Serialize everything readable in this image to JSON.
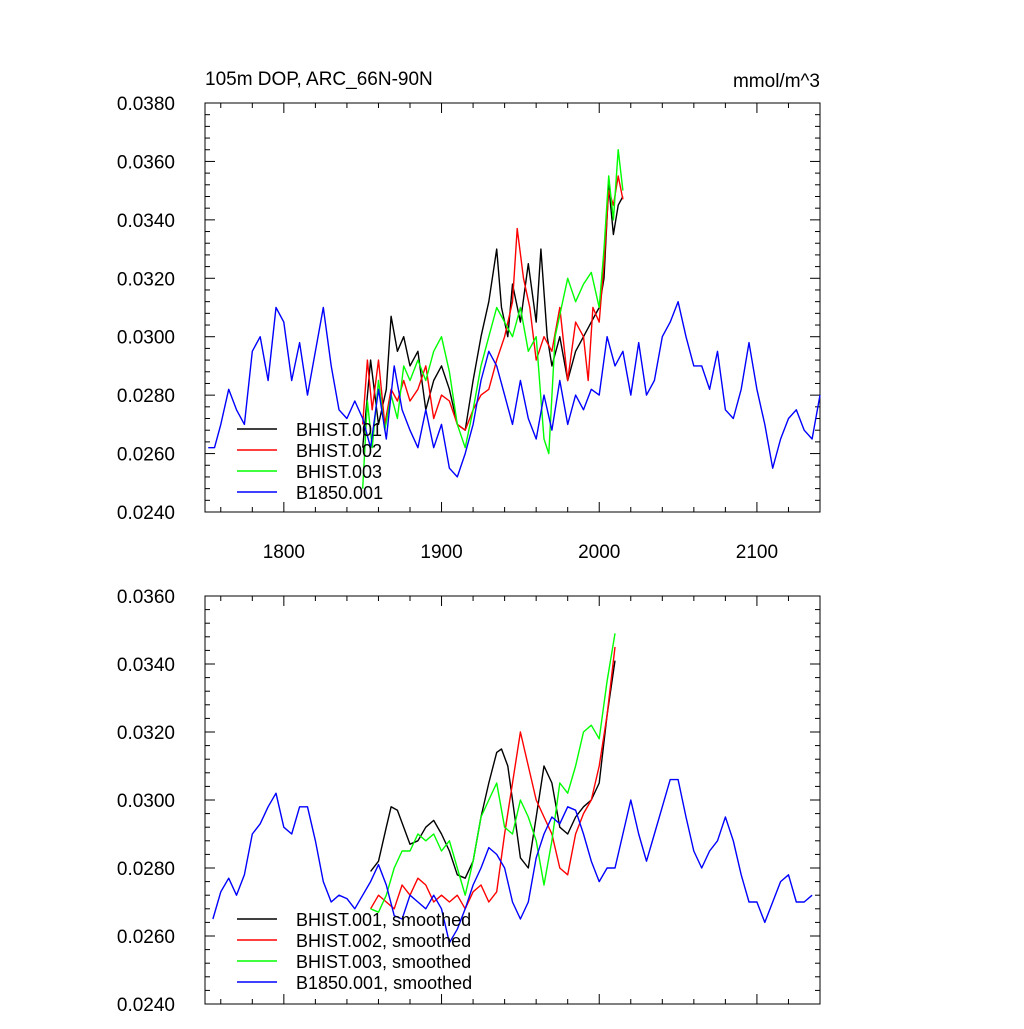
{
  "chart_data": [
    {
      "type": "line",
      "title_left": "105m DOP, ARC_66N-90N",
      "title_right": "mmol/m^3",
      "xlim": [
        1750,
        2140
      ],
      "ylim": [
        0.024,
        0.038
      ],
      "xticks": [
        1800,
        1900,
        2000,
        2100
      ],
      "yticks": [
        "0.0240",
        "0.0260",
        "0.0280",
        "0.0300",
        "0.0320",
        "0.0340",
        "0.0360",
        "0.0380"
      ],
      "legend": "bottom-left",
      "series": [
        {
          "name": "BHIST.001",
          "color": "#000000",
          "x": [
            1850,
            1855,
            1860,
            1865,
            1868,
            1872,
            1876,
            1880,
            1885,
            1890,
            1895,
            1900,
            1905,
            1910,
            1915,
            1920,
            1925,
            1930,
            1935,
            1938,
            1942,
            1945,
            1950,
            1955,
            1960,
            1963,
            1967,
            1970,
            1975,
            1980,
            1985,
            1990,
            1995,
            2000,
            2003,
            2006,
            2009,
            2012,
            2015
          ],
          "y": [
            0.0262,
            0.0292,
            0.027,
            0.0282,
            0.0307,
            0.0295,
            0.03,
            0.029,
            0.0295,
            0.0275,
            0.0285,
            0.029,
            0.0282,
            0.027,
            0.0268,
            0.0285,
            0.03,
            0.0312,
            0.033,
            0.031,
            0.03,
            0.0318,
            0.0305,
            0.0325,
            0.0305,
            0.033,
            0.03,
            0.029,
            0.03,
            0.0285,
            0.0295,
            0.03,
            0.0305,
            0.031,
            0.032,
            0.0352,
            0.0335,
            0.0345,
            0.0348
          ]
        },
        {
          "name": "BHIST.002",
          "color": "#ff0000",
          "x": [
            1850,
            1853,
            1856,
            1860,
            1864,
            1868,
            1872,
            1876,
            1880,
            1885,
            1890,
            1895,
            1900,
            1905,
            1910,
            1915,
            1920,
            1925,
            1930,
            1935,
            1940,
            1945,
            1948,
            1952,
            1956,
            1960,
            1965,
            1970,
            1975,
            1980,
            1985,
            1990,
            1993,
            1996,
            2000,
            2003,
            2006,
            2009,
            2012,
            2015
          ],
          "y": [
            0.027,
            0.0292,
            0.0275,
            0.0292,
            0.027,
            0.0282,
            0.0278,
            0.0285,
            0.0278,
            0.0282,
            0.029,
            0.0272,
            0.028,
            0.0278,
            0.027,
            0.0268,
            0.0275,
            0.028,
            0.0282,
            0.0292,
            0.03,
            0.0312,
            0.0337,
            0.032,
            0.031,
            0.0292,
            0.03,
            0.0295,
            0.031,
            0.0285,
            0.0305,
            0.03,
            0.0285,
            0.031,
            0.0305,
            0.0325,
            0.035,
            0.0345,
            0.0355,
            0.0347
          ]
        },
        {
          "name": "BHIST.003",
          "color": "#00ff00",
          "x": [
            1850,
            1853,
            1856,
            1860,
            1864,
            1868,
            1872,
            1876,
            1880,
            1885,
            1890,
            1895,
            1900,
            1905,
            1910,
            1915,
            1920,
            1925,
            1930,
            1935,
            1940,
            1945,
            1950,
            1955,
            1960,
            1965,
            1968,
            1972,
            1976,
            1980,
            1985,
            1990,
            1995,
            2000,
            2003,
            2006,
            2009,
            2012,
            2015
          ],
          "y": [
            0.0248,
            0.0278,
            0.0262,
            0.0285,
            0.0268,
            0.028,
            0.0272,
            0.029,
            0.0285,
            0.0292,
            0.0285,
            0.0295,
            0.03,
            0.0288,
            0.027,
            0.0262,
            0.0275,
            0.029,
            0.03,
            0.031,
            0.0305,
            0.03,
            0.031,
            0.0295,
            0.03,
            0.0265,
            0.026,
            0.03,
            0.031,
            0.032,
            0.0312,
            0.0318,
            0.0322,
            0.031,
            0.033,
            0.0355,
            0.034,
            0.0364,
            0.035
          ]
        },
        {
          "name": "B1850.001",
          "color": "#0000ff",
          "x": [
            1752,
            1756,
            1760,
            1765,
            1770,
            1775,
            1780,
            1785,
            1790,
            1795,
            1800,
            1805,
            1810,
            1815,
            1820,
            1825,
            1830,
            1835,
            1840,
            1845,
            1850,
            1855,
            1860,
            1865,
            1870,
            1875,
            1880,
            1885,
            1890,
            1895,
            1900,
            1905,
            1910,
            1915,
            1920,
            1925,
            1930,
            1935,
            1940,
            1945,
            1950,
            1955,
            1960,
            1965,
            1970,
            1975,
            1980,
            1985,
            1990,
            1995,
            2000,
            2005,
            2010,
            2015,
            2020,
            2025,
            2030,
            2035,
            2040,
            2045,
            2050,
            2055,
            2060,
            2065,
            2070,
            2075,
            2080,
            2085,
            2090,
            2095,
            2100,
            2105,
            2110,
            2115,
            2120,
            2125,
            2130,
            2135,
            2140
          ],
          "y": [
            0.0262,
            0.0262,
            0.027,
            0.0282,
            0.0275,
            0.027,
            0.0295,
            0.03,
            0.0285,
            0.031,
            0.0305,
            0.0285,
            0.0298,
            0.028,
            0.0295,
            0.031,
            0.029,
            0.0275,
            0.0272,
            0.0278,
            0.0272,
            0.0262,
            0.0282,
            0.0265,
            0.029,
            0.0275,
            0.0268,
            0.0262,
            0.0275,
            0.0262,
            0.027,
            0.0255,
            0.0252,
            0.026,
            0.027,
            0.0285,
            0.0295,
            0.029,
            0.028,
            0.027,
            0.0285,
            0.0272,
            0.0265,
            0.028,
            0.0268,
            0.0285,
            0.027,
            0.028,
            0.0275,
            0.0282,
            0.028,
            0.03,
            0.029,
            0.0295,
            0.028,
            0.0298,
            0.028,
            0.0285,
            0.03,
            0.0305,
            0.0312,
            0.03,
            0.029,
            0.029,
            0.0282,
            0.0295,
            0.0275,
            0.0272,
            0.0282,
            0.0298,
            0.0282,
            0.027,
            0.0255,
            0.0265,
            0.0272,
            0.0275,
            0.0268,
            0.0265,
            0.028
          ]
        }
      ]
    },
    {
      "type": "line",
      "xlim": [
        1750,
        2140
      ],
      "ylim": [
        0.024,
        0.036
      ],
      "xticks": [
        1800,
        1900,
        2000,
        2100
      ],
      "yticks": [
        "0.0240",
        "0.0260",
        "0.0280",
        "0.0300",
        "0.0320",
        "0.0340",
        "0.0360"
      ],
      "legend": "bottom-left",
      "series": [
        {
          "name": "BHIST.001, smoothed",
          "color": "#000000",
          "x": [
            1855,
            1860,
            1865,
            1868,
            1872,
            1876,
            1880,
            1885,
            1890,
            1895,
            1900,
            1905,
            1910,
            1915,
            1920,
            1925,
            1930,
            1935,
            1938,
            1942,
            1945,
            1950,
            1955,
            1960,
            1965,
            1970,
            1975,
            1980,
            1985,
            1990,
            1995,
            2000,
            2005,
            2010
          ],
          "y": [
            0.0279,
            0.0282,
            0.0292,
            0.0298,
            0.0297,
            0.0292,
            0.0287,
            0.0288,
            0.0292,
            0.0294,
            0.029,
            0.0285,
            0.0278,
            0.0277,
            0.0282,
            0.0295,
            0.0305,
            0.0314,
            0.0315,
            0.031,
            0.03,
            0.0283,
            0.028,
            0.0295,
            0.031,
            0.0305,
            0.0292,
            0.029,
            0.0295,
            0.0298,
            0.03,
            0.0305,
            0.0325,
            0.0341
          ]
        },
        {
          "name": "BHIST.002, smoothed",
          "color": "#ff0000",
          "x": [
            1855,
            1860,
            1865,
            1870,
            1875,
            1880,
            1885,
            1890,
            1895,
            1900,
            1905,
            1910,
            1915,
            1920,
            1925,
            1930,
            1935,
            1940,
            1945,
            1950,
            1955,
            1960,
            1965,
            1970,
            1975,
            1980,
            1985,
            1990,
            1995,
            2000,
            2005,
            2010
          ],
          "y": [
            0.0268,
            0.0272,
            0.027,
            0.0268,
            0.0275,
            0.0272,
            0.0277,
            0.0275,
            0.027,
            0.0272,
            0.027,
            0.0272,
            0.0268,
            0.0273,
            0.0275,
            0.027,
            0.0273,
            0.029,
            0.0305,
            0.032,
            0.031,
            0.03,
            0.0295,
            0.029,
            0.028,
            0.0278,
            0.029,
            0.0296,
            0.03,
            0.031,
            0.0325,
            0.0345
          ]
        },
        {
          "name": "BHIST.003, smoothed",
          "color": "#00ff00",
          "x": [
            1855,
            1860,
            1865,
            1870,
            1875,
            1880,
            1885,
            1890,
            1895,
            1900,
            1905,
            1910,
            1915,
            1920,
            1925,
            1930,
            1935,
            1940,
            1945,
            1950,
            1955,
            1960,
            1965,
            1970,
            1975,
            1980,
            1985,
            1990,
            1995,
            2000,
            2005,
            2010
          ],
          "y": [
            0.0268,
            0.0267,
            0.0272,
            0.028,
            0.0285,
            0.0285,
            0.029,
            0.0288,
            0.029,
            0.0285,
            0.0288,
            0.028,
            0.0272,
            0.0282,
            0.0295,
            0.03,
            0.0305,
            0.0292,
            0.029,
            0.03,
            0.0295,
            0.0288,
            0.0275,
            0.0288,
            0.0305,
            0.0302,
            0.031,
            0.032,
            0.0322,
            0.0318,
            0.0335,
            0.0349
          ]
        },
        {
          "name": "B1850.001, smoothed",
          "color": "#0000ff",
          "x": [
            1755,
            1760,
            1765,
            1770,
            1775,
            1780,
            1785,
            1790,
            1795,
            1800,
            1805,
            1810,
            1815,
            1820,
            1825,
            1830,
            1835,
            1840,
            1845,
            1850,
            1855,
            1860,
            1865,
            1870,
            1875,
            1880,
            1885,
            1890,
            1895,
            1900,
            1905,
            1910,
            1915,
            1920,
            1925,
            1930,
            1935,
            1940,
            1945,
            1950,
            1955,
            1960,
            1965,
            1970,
            1975,
            1980,
            1985,
            1990,
            1995,
            2000,
            2005,
            2010,
            2015,
            2020,
            2025,
            2030,
            2035,
            2040,
            2045,
            2050,
            2055,
            2060,
            2065,
            2070,
            2075,
            2080,
            2085,
            2090,
            2095,
            2100,
            2105,
            2110,
            2115,
            2120,
            2125,
            2130,
            2135
          ],
          "y": [
            0.0265,
            0.0273,
            0.0277,
            0.0272,
            0.0278,
            0.029,
            0.0293,
            0.0298,
            0.0302,
            0.0292,
            0.029,
            0.0298,
            0.0298,
            0.0288,
            0.0276,
            0.027,
            0.0272,
            0.0271,
            0.0268,
            0.0272,
            0.0276,
            0.0281,
            0.0275,
            0.0266,
            0.0265,
            0.0272,
            0.027,
            0.0268,
            0.0272,
            0.0268,
            0.0258,
            0.0262,
            0.0268,
            0.0275,
            0.028,
            0.0286,
            0.0284,
            0.028,
            0.027,
            0.0265,
            0.027,
            0.0283,
            0.029,
            0.0295,
            0.0293,
            0.0298,
            0.0297,
            0.029,
            0.0282,
            0.0276,
            0.028,
            0.028,
            0.029,
            0.03,
            0.029,
            0.0282,
            0.029,
            0.0298,
            0.0306,
            0.0306,
            0.0295,
            0.0285,
            0.028,
            0.0285,
            0.0288,
            0.0295,
            0.0288,
            0.0278,
            0.027,
            0.027,
            0.0264,
            0.027,
            0.0276,
            0.0278,
            0.027,
            0.027,
            0.0272
          ]
        }
      ]
    }
  ]
}
